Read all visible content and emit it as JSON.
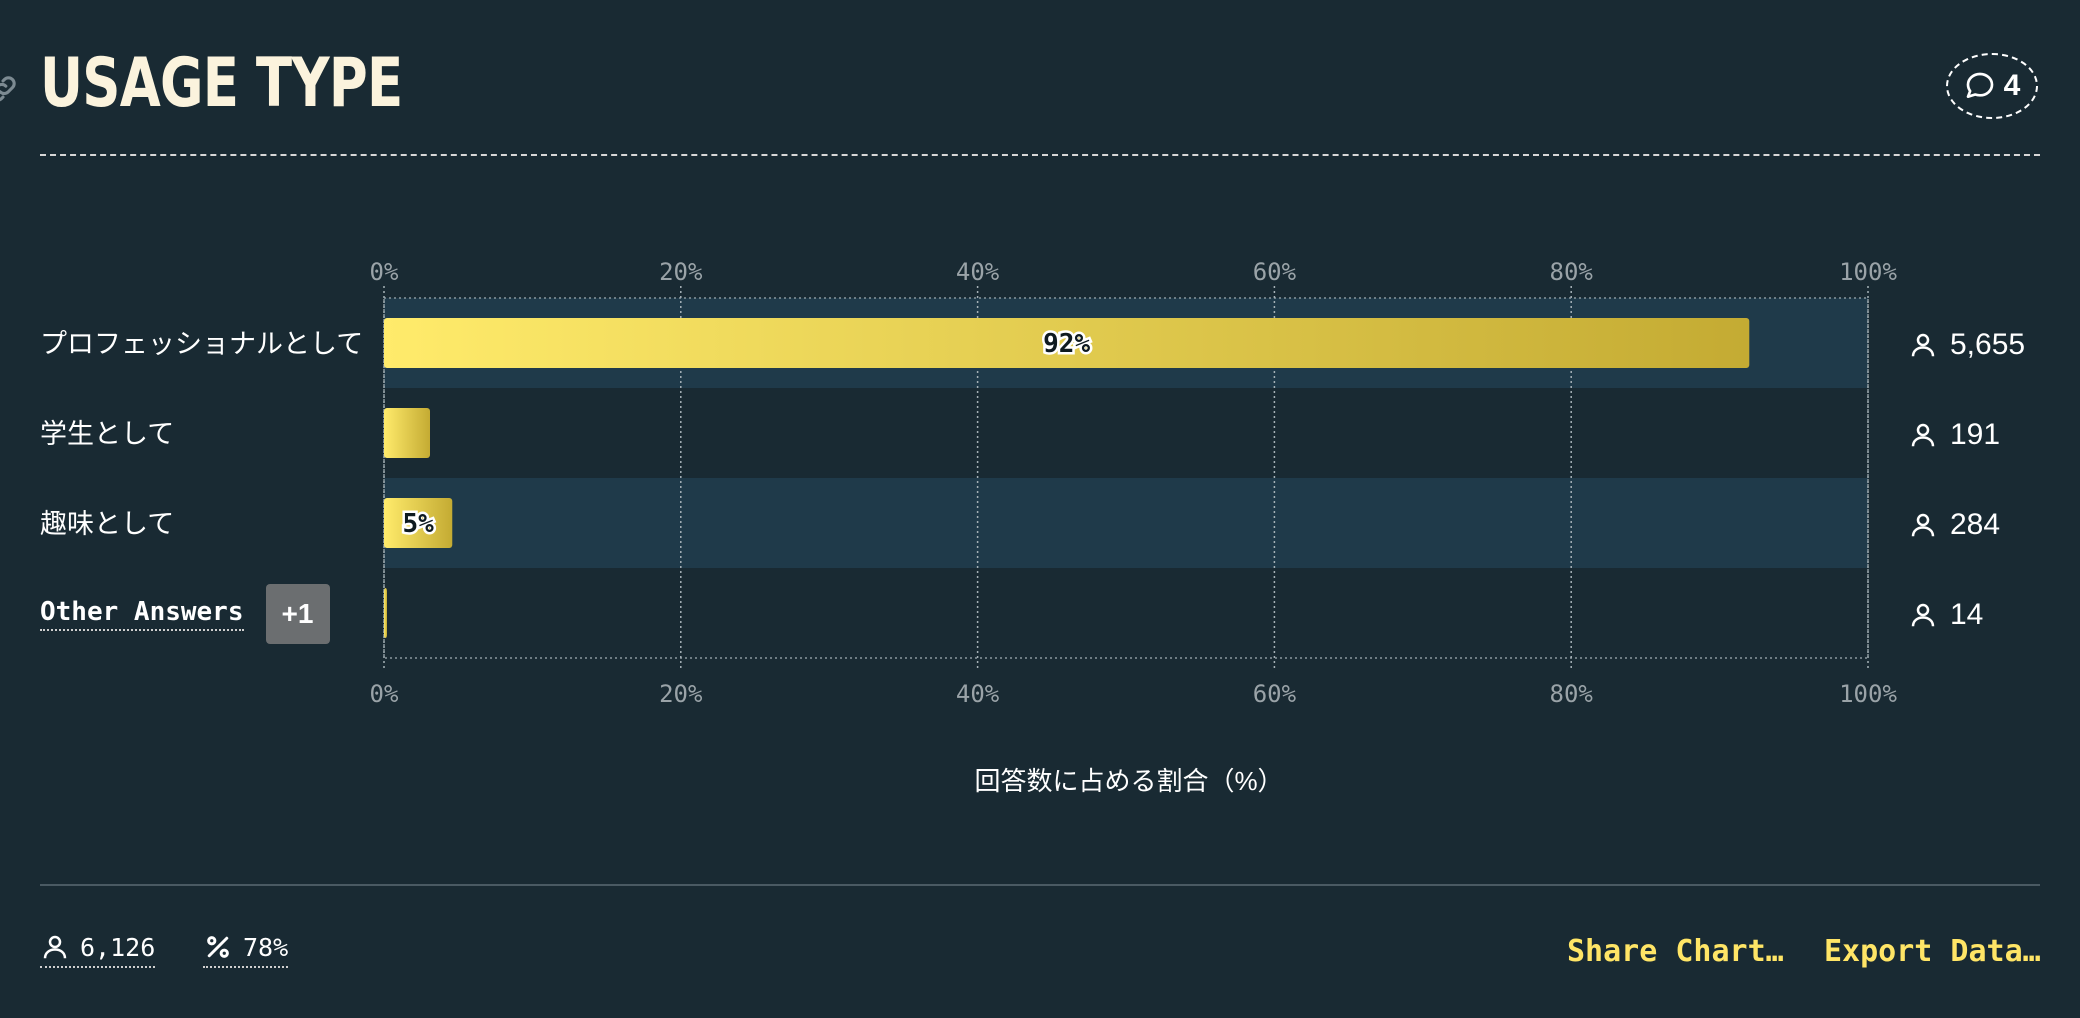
{
  "header": {
    "title": "USAGE TYPE",
    "comment_count": "4",
    "link_icon": "link-icon",
    "comment_icon": "speech-bubble-icon"
  },
  "colors": {
    "background": "#192a33",
    "band": "#1f3a4a",
    "bar_start": "#ffeb6b",
    "bar_end": "#c4ab33",
    "accent": "#ffe566",
    "title": "#fbf3dd"
  },
  "chart_data": {
    "type": "bar",
    "orientation": "horizontal",
    "categories": [
      "プロフェッショナルとして",
      "学生として",
      "趣味として",
      "Other Answers"
    ],
    "values": [
      92,
      3.1,
      4.6,
      0.2
    ],
    "bar_labels": [
      "92%",
      "",
      "5%",
      ""
    ],
    "counts": [
      "5,655",
      "191",
      "284",
      "14"
    ],
    "other_extra": "+1",
    "xlim": [
      0,
      100
    ],
    "ticks": [
      "0%",
      "20%",
      "40%",
      "60%",
      "80%",
      "100%"
    ],
    "xlabel": "回答数に占める割合（%）",
    "grid": true
  },
  "footer": {
    "respondents": "6,126",
    "percentage": "78%",
    "share_label": "Share Chart…",
    "export_label": "Export Data…"
  }
}
